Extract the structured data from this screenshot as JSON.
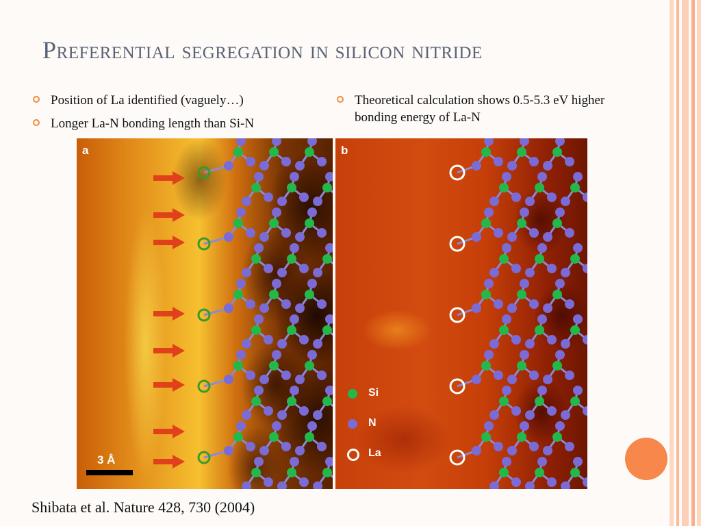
{
  "slide": {
    "title": "Preferential segregation in silicon nitride",
    "left_bullets": [
      "Position of La identified (vaguely…)",
      "Longer La-N bonding length than Si-N"
    ],
    "right_bullets": [
      "Theoretical calculation shows 0.5-5.3 eV higher bonding energy of La-N"
    ],
    "citation": "Shibata et al. Nature 428, 730 (2004)"
  },
  "figure": {
    "panel_a_label": "a",
    "panel_b_label": "b",
    "scale_label": "3 Å",
    "legend": [
      {
        "label": "Si",
        "color": "#22b84a"
      },
      {
        "label": "N",
        "color": "#7a6bd6"
      },
      {
        "label": "La",
        "color": "#ffffff"
      }
    ]
  },
  "colors": {
    "accent": "#f08a3c",
    "title": "#5a6375",
    "si": "#22b84a",
    "n": "#7a6bd6",
    "arrow": "#e0401a"
  }
}
